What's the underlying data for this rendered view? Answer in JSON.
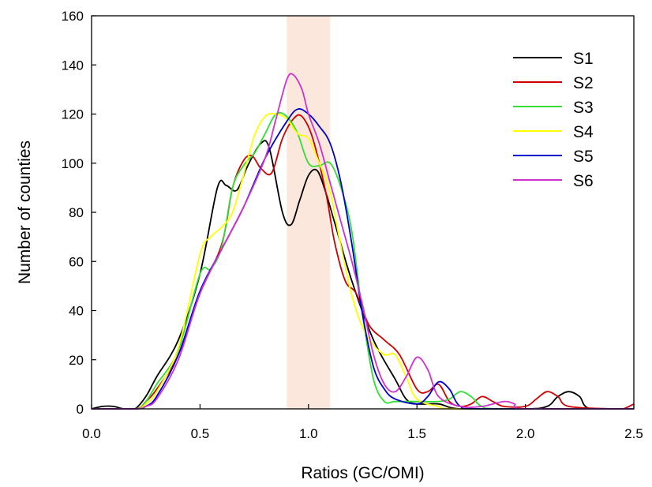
{
  "chart_data": {
    "type": "line",
    "title": "",
    "xlabel": "Ratios (GC/OMI)",
    "ylabel": "Number of counties",
    "xlim": [
      0,
      2.5
    ],
    "ylim": [
      0,
      160
    ],
    "xticks": [
      "0.0",
      "0.5",
      "1.0",
      "1.5",
      "2.0",
      "2.5"
    ],
    "yticks": [
      "0",
      "20",
      "40",
      "60",
      "80",
      "100",
      "120",
      "140",
      "160"
    ],
    "highlight_band": {
      "x0": 0.9,
      "x1": 1.1,
      "color": "#fbe7dc"
    },
    "legend_position": "top-right",
    "grid": false,
    "series": [
      {
        "name": "S1",
        "color": "#000000",
        "points": [
          [
            0,
            0
          ],
          [
            0.05,
            1
          ],
          [
            0.1,
            1
          ],
          [
            0.15,
            0
          ],
          [
            0.2,
            0
          ],
          [
            0.25,
            5
          ],
          [
            0.3,
            13
          ],
          [
            0.4,
            28
          ],
          [
            0.5,
            55
          ],
          [
            0.58,
            90
          ],
          [
            0.62,
            91
          ],
          [
            0.67,
            89
          ],
          [
            0.72,
            99
          ],
          [
            0.78,
            108
          ],
          [
            0.82,
            106
          ],
          [
            0.88,
            80
          ],
          [
            0.92,
            75
          ],
          [
            0.96,
            85
          ],
          [
            1.0,
            95
          ],
          [
            1.04,
            97
          ],
          [
            1.08,
            88
          ],
          [
            1.12,
            76
          ],
          [
            1.2,
            52
          ],
          [
            1.3,
            28
          ],
          [
            1.4,
            12
          ],
          [
            1.45,
            4
          ],
          [
            1.5,
            2
          ],
          [
            1.6,
            2
          ],
          [
            1.7,
            0
          ],
          [
            2.0,
            0
          ],
          [
            2.1,
            1
          ],
          [
            2.15,
            5
          ],
          [
            2.2,
            7
          ],
          [
            2.25,
            5
          ],
          [
            2.3,
            0
          ],
          [
            2.5,
            0
          ]
        ]
      },
      {
        "name": "S2",
        "color": "#cc0000",
        "points": [
          [
            0,
            0
          ],
          [
            0.2,
            0
          ],
          [
            0.25,
            3
          ],
          [
            0.3,
            8
          ],
          [
            0.4,
            22
          ],
          [
            0.5,
            47
          ],
          [
            0.6,
            67
          ],
          [
            0.65,
            90
          ],
          [
            0.7,
            101
          ],
          [
            0.74,
            103
          ],
          [
            0.78,
            98
          ],
          [
            0.83,
            96
          ],
          [
            0.88,
            110
          ],
          [
            0.93,
            118
          ],
          [
            0.97,
            119
          ],
          [
            1.02,
            110
          ],
          [
            1.08,
            88
          ],
          [
            1.12,
            68
          ],
          [
            1.17,
            52
          ],
          [
            1.22,
            47
          ],
          [
            1.28,
            34
          ],
          [
            1.35,
            28
          ],
          [
            1.42,
            22
          ],
          [
            1.5,
            8
          ],
          [
            1.55,
            7
          ],
          [
            1.6,
            10
          ],
          [
            1.65,
            3
          ],
          [
            1.7,
            1
          ],
          [
            1.75,
            2
          ],
          [
            1.8,
            5
          ],
          [
            1.85,
            3
          ],
          [
            1.9,
            1
          ],
          [
            2.0,
            1
          ],
          [
            2.05,
            4
          ],
          [
            2.1,
            7
          ],
          [
            2.15,
            5
          ],
          [
            2.2,
            1
          ],
          [
            2.4,
            0
          ],
          [
            2.45,
            0
          ],
          [
            2.5,
            2
          ]
        ]
      },
      {
        "name": "S3",
        "color": "#33dd33",
        "points": [
          [
            0,
            0
          ],
          [
            0.2,
            0
          ],
          [
            0.25,
            3
          ],
          [
            0.3,
            10
          ],
          [
            0.4,
            24
          ],
          [
            0.5,
            55
          ],
          [
            0.55,
            57
          ],
          [
            0.6,
            66
          ],
          [
            0.65,
            90
          ],
          [
            0.7,
            99
          ],
          [
            0.75,
            104
          ],
          [
            0.8,
            112
          ],
          [
            0.85,
            120
          ],
          [
            0.9,
            119
          ],
          [
            0.95,
            112
          ],
          [
            1.0,
            100
          ],
          [
            1.05,
            99
          ],
          [
            1.1,
            100
          ],
          [
            1.15,
            90
          ],
          [
            1.2,
            72
          ],
          [
            1.25,
            38
          ],
          [
            1.3,
            12
          ],
          [
            1.35,
            3
          ],
          [
            1.4,
            3
          ],
          [
            1.5,
            3
          ],
          [
            1.6,
            3
          ],
          [
            1.65,
            4
          ],
          [
            1.7,
            7
          ],
          [
            1.75,
            5
          ],
          [
            1.8,
            1
          ],
          [
            1.9,
            0
          ],
          [
            2.5,
            0
          ]
        ]
      },
      {
        "name": "S4",
        "color": "#ffff00",
        "points": [
          [
            0,
            0
          ],
          [
            0.2,
            0
          ],
          [
            0.25,
            2
          ],
          [
            0.3,
            7
          ],
          [
            0.4,
            25
          ],
          [
            0.5,
            63
          ],
          [
            0.55,
            70
          ],
          [
            0.6,
            74
          ],
          [
            0.65,
            80
          ],
          [
            0.7,
            95
          ],
          [
            0.75,
            111
          ],
          [
            0.8,
            119
          ],
          [
            0.85,
            120
          ],
          [
            0.9,
            118
          ],
          [
            0.95,
            112
          ],
          [
            1.0,
            110
          ],
          [
            1.05,
            100
          ],
          [
            1.1,
            88
          ],
          [
            1.15,
            66
          ],
          [
            1.2,
            46
          ],
          [
            1.25,
            33
          ],
          [
            1.3,
            26
          ],
          [
            1.35,
            22
          ],
          [
            1.4,
            22
          ],
          [
            1.45,
            13
          ],
          [
            1.5,
            4
          ],
          [
            1.6,
            1
          ],
          [
            1.7,
            0
          ],
          [
            2.5,
            0
          ]
        ]
      },
      {
        "name": "S5",
        "color": "#0000cc",
        "points": [
          [
            0,
            0
          ],
          [
            0.2,
            0
          ],
          [
            0.25,
            1
          ],
          [
            0.3,
            5
          ],
          [
            0.4,
            22
          ],
          [
            0.5,
            48
          ],
          [
            0.6,
            65
          ],
          [
            0.7,
            82
          ],
          [
            0.8,
            102
          ],
          [
            0.9,
            117
          ],
          [
            0.95,
            122
          ],
          [
            1.0,
            120
          ],
          [
            1.05,
            115
          ],
          [
            1.1,
            108
          ],
          [
            1.15,
            92
          ],
          [
            1.2,
            67
          ],
          [
            1.25,
            38
          ],
          [
            1.3,
            17
          ],
          [
            1.35,
            8
          ],
          [
            1.4,
            4
          ],
          [
            1.5,
            2
          ],
          [
            1.55,
            5
          ],
          [
            1.6,
            11
          ],
          [
            1.65,
            8
          ],
          [
            1.7,
            1
          ],
          [
            1.8,
            0
          ],
          [
            2.5,
            0
          ]
        ]
      },
      {
        "name": "S6",
        "color": "#cc33cc",
        "points": [
          [
            0,
            0
          ],
          [
            0.2,
            0
          ],
          [
            0.25,
            1
          ],
          [
            0.3,
            4
          ],
          [
            0.4,
            20
          ],
          [
            0.5,
            47
          ],
          [
            0.6,
            65
          ],
          [
            0.7,
            82
          ],
          [
            0.8,
            102
          ],
          [
            0.85,
            118
          ],
          [
            0.9,
            134
          ],
          [
            0.93,
            136
          ],
          [
            0.97,
            130
          ],
          [
            1.0,
            120
          ],
          [
            1.05,
            108
          ],
          [
            1.1,
            92
          ],
          [
            1.15,
            76
          ],
          [
            1.2,
            60
          ],
          [
            1.25,
            42
          ],
          [
            1.3,
            22
          ],
          [
            1.35,
            10
          ],
          [
            1.4,
            7
          ],
          [
            1.45,
            13
          ],
          [
            1.5,
            21
          ],
          [
            1.55,
            16
          ],
          [
            1.6,
            5
          ],
          [
            1.7,
            1
          ],
          [
            1.8,
            1
          ],
          [
            1.9,
            3
          ],
          [
            1.95,
            2
          ],
          [
            2.0,
            0
          ],
          [
            2.5,
            0
          ]
        ]
      }
    ]
  }
}
